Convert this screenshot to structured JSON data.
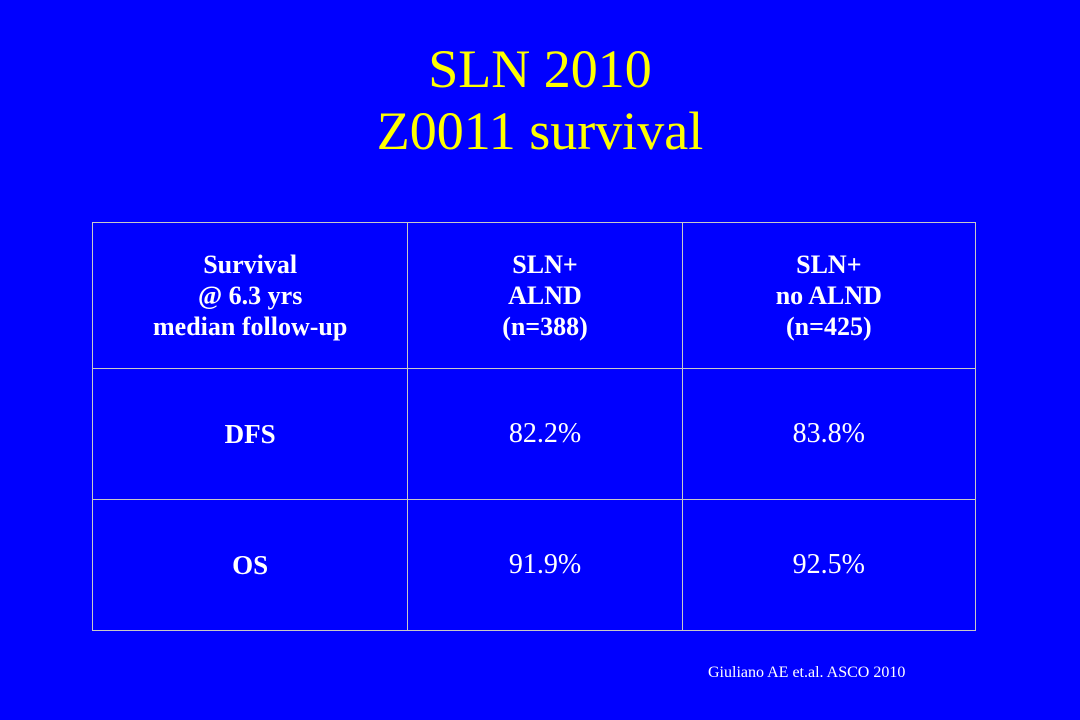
{
  "title": {
    "line1": "SLN 2010",
    "line2": "Z0011 survival"
  },
  "table": {
    "headers": [
      [
        "Survival",
        "@ 6.3 yrs",
        "median  follow-up"
      ],
      [
        "SLN+",
        "ALND",
        "(n=388)"
      ],
      [
        "SLN+",
        "no ALND",
        "(n=425)"
      ]
    ],
    "rows": [
      {
        "label": "DFS",
        "alnd": "82.2%",
        "no_alnd": "83.8%"
      },
      {
        "label": "OS",
        "alnd": "91.9%",
        "no_alnd": "92.5%"
      }
    ]
  },
  "citation": "Giuliano AE et.al.  ASCO 2010",
  "colors": {
    "background": "#0000ff",
    "title": "#ffff00",
    "text": "#ffffff"
  }
}
